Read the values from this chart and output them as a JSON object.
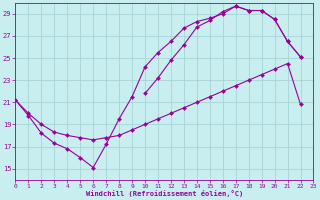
{
  "xlabel": "Windchill (Refroidissement éolien,°C)",
  "bg_color": "#c8eef0",
  "grid_color": "#a8d4d8",
  "line_color": "#990099",
  "xlim": [
    0,
    23
  ],
  "ylim": [
    14,
    30
  ],
  "xticks": [
    0,
    1,
    2,
    3,
    4,
    5,
    6,
    7,
    8,
    9,
    10,
    11,
    12,
    13,
    14,
    15,
    16,
    17,
    18,
    19,
    20,
    21,
    22,
    23
  ],
  "yticks": [
    15,
    17,
    19,
    21,
    23,
    25,
    27,
    29
  ],
  "curve1_x": [
    0,
    1,
    2,
    3,
    4,
    5,
    6,
    7,
    8,
    9,
    10,
    11,
    12,
    13,
    14,
    15,
    16,
    17,
    18,
    19,
    20,
    21,
    22,
    23
  ],
  "curve1_y": [
    21.2,
    19.8,
    18.2,
    17.3,
    16.8,
    16.0,
    15.1,
    17.2,
    19.5,
    21.5,
    24.2,
    25.5,
    26.5,
    27.7,
    28.3,
    28.6,
    29.0,
    29.7,
    29.3,
    29.3,
    28.5,
    26.5,
    25.1,
    null
  ],
  "curve2_x": [
    0,
    1,
    2,
    3,
    4,
    5,
    6,
    7,
    8,
    9,
    10,
    11,
    12,
    13,
    14,
    15,
    16,
    17,
    18,
    19,
    20,
    21,
    22,
    23
  ],
  "curve2_y": [
    null,
    null,
    null,
    null,
    null,
    null,
    null,
    null,
    null,
    null,
    21.8,
    23.2,
    24.8,
    26.2,
    27.8,
    28.4,
    29.2,
    29.7,
    29.3,
    29.3,
    28.5,
    26.5,
    25.1,
    null
  ],
  "curve3_x": [
    0,
    1,
    2,
    3,
    4,
    5,
    6,
    7,
    8,
    9,
    10,
    11,
    12,
    13,
    14,
    15,
    16,
    17,
    18,
    19,
    20,
    21,
    22,
    23
  ],
  "curve3_y": [
    21.2,
    20.0,
    19.0,
    18.3,
    18.0,
    17.8,
    17.6,
    17.8,
    18.0,
    18.5,
    19.0,
    19.5,
    20.0,
    20.5,
    21.0,
    21.5,
    22.0,
    22.5,
    23.0,
    23.5,
    24.0,
    24.5,
    20.8,
    null
  ]
}
